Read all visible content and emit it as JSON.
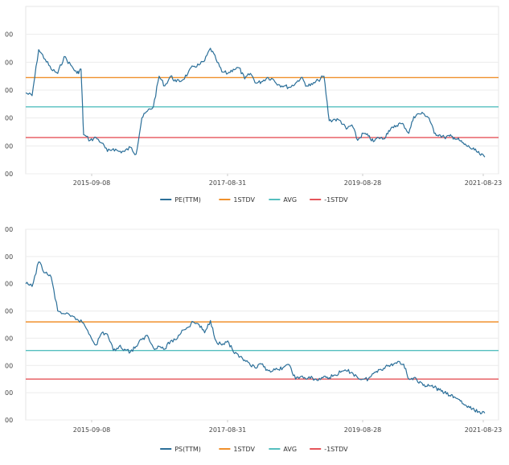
{
  "chart_data": [
    {
      "type": "line",
      "y_tick_labels": [
        "00",
        "00",
        "00",
        "00",
        "00",
        "00"
      ],
      "x_tick_labels": [
        "2015-09-08",
        "2017-08-31",
        "2019-08-28",
        "2021-08-23"
      ],
      "ylim": [
        0,
        6
      ],
      "grid": true,
      "legend_position": "bottom-center",
      "series": [
        {
          "name": "PE(TTM)",
          "color": "#2b6f99",
          "x": [
            "2014-11-01",
            "2014-12-01",
            "2015-01-01",
            "2015-02-01",
            "2015-03-01",
            "2015-04-01",
            "2015-05-01",
            "2015-06-01",
            "2015-07-01",
            "2015-07-20",
            "2015-08-01",
            "2015-09-01",
            "2015-10-01",
            "2015-11-01",
            "2015-12-01",
            "2016-01-01",
            "2016-02-01",
            "2016-03-01",
            "2016-04-01",
            "2016-05-01",
            "2016-06-01",
            "2016-07-01",
            "2016-08-01",
            "2016-09-01",
            "2016-10-01",
            "2016-11-01",
            "2016-12-01",
            "2017-01-01",
            "2017-02-01",
            "2017-03-01",
            "2017-04-01",
            "2017-05-01",
            "2017-06-01",
            "2017-07-01",
            "2017-08-01",
            "2017-09-01",
            "2017-10-01",
            "2017-11-01",
            "2017-12-01",
            "2018-01-01",
            "2018-02-01",
            "2018-03-01",
            "2018-04-01",
            "2018-05-01",
            "2018-06-01",
            "2018-07-01",
            "2018-08-01",
            "2018-09-01",
            "2018-10-01",
            "2018-11-01",
            "2018-12-01",
            "2019-01-01",
            "2019-02-01",
            "2019-03-01",
            "2019-04-01",
            "2019-05-01",
            "2019-06-01",
            "2019-07-01",
            "2019-08-01",
            "2019-09-01",
            "2019-10-01",
            "2019-11-01",
            "2019-12-01",
            "2020-01-01",
            "2020-02-01",
            "2020-03-01",
            "2020-04-01",
            "2020-05-01",
            "2020-06-01",
            "2020-07-01",
            "2020-08-01",
            "2020-09-01",
            "2020-10-01",
            "2020-11-01",
            "2020-12-01",
            "2021-01-01",
            "2021-02-01",
            "2021-03-01",
            "2021-04-01",
            "2021-05-01",
            "2021-06-01",
            "2021-07-01",
            "2021-08-01",
            "2021-09-01"
          ],
          "values": [
            2.9,
            2.8,
            4.45,
            4.1,
            3.75,
            3.6,
            4.2,
            3.9,
            3.6,
            3.75,
            1.4,
            1.2,
            1.3,
            1.1,
            0.8,
            0.9,
            0.8,
            0.8,
            0.95,
            0.7,
            2.0,
            2.25,
            2.4,
            3.5,
            3.15,
            3.5,
            3.3,
            3.35,
            3.6,
            3.85,
            3.9,
            4.05,
            4.5,
            4.1,
            3.65,
            3.6,
            3.75,
            3.8,
            3.4,
            3.6,
            3.25,
            3.3,
            3.45,
            3.4,
            3.2,
            3.15,
            3.1,
            3.25,
            3.45,
            3.15,
            3.2,
            3.35,
            3.5,
            1.9,
            1.95,
            1.9,
            1.6,
            1.75,
            1.2,
            1.45,
            1.35,
            1.15,
            1.3,
            1.25,
            1.55,
            1.65,
            1.8,
            1.75,
            1.45,
            2.05,
            2.15,
            2.15,
            2.0,
            1.45,
            1.4,
            1.3,
            1.35,
            1.3,
            1.2,
            1.05,
            0.95,
            0.85,
            0.7,
            0.6
          ]
        },
        {
          "name": "1STDV",
          "color": "#f0902c",
          "values": [
            3.45
          ]
        },
        {
          "name": "AVG",
          "color": "#55bfbf",
          "values": [
            2.4
          ]
        },
        {
          "name": "-1STDV",
          "color": "#e5555a",
          "values": [
            1.3
          ]
        }
      ]
    },
    {
      "type": "line",
      "y_tick_labels": [
        "00",
        "00",
        "00",
        "00",
        "00",
        "00",
        "00",
        "00"
      ],
      "x_tick_labels": [
        "2015-09-08",
        "2017-08-31",
        "2019-08-28",
        "2021-08-23"
      ],
      "ylim": [
        0,
        7
      ],
      "grid": true,
      "legend_position": "bottom-center",
      "series": [
        {
          "name": "PS(TTM)",
          "color": "#2b6f99",
          "x": [
            "2014-11-01",
            "2014-12-01",
            "2015-01-01",
            "2015-02-01",
            "2015-03-01",
            "2015-04-01",
            "2015-05-01",
            "2015-06-01",
            "2015-07-01",
            "2015-08-01",
            "2015-09-01",
            "2015-10-01",
            "2015-11-01",
            "2015-12-01",
            "2016-01-01",
            "2016-02-01",
            "2016-03-01",
            "2016-04-01",
            "2016-05-01",
            "2016-06-01",
            "2016-07-01",
            "2016-08-01",
            "2016-09-01",
            "2016-10-01",
            "2016-11-01",
            "2016-12-01",
            "2017-01-01",
            "2017-02-01",
            "2017-03-01",
            "2017-04-01",
            "2017-05-01",
            "2017-06-01",
            "2017-07-01",
            "2017-08-01",
            "2017-09-01",
            "2017-10-01",
            "2017-11-01",
            "2017-12-01",
            "2018-01-01",
            "2018-02-01",
            "2018-03-01",
            "2018-04-01",
            "2018-05-01",
            "2018-06-01",
            "2018-07-01",
            "2018-08-01",
            "2018-09-01",
            "2018-10-01",
            "2018-11-01",
            "2018-12-01",
            "2019-01-01",
            "2019-02-01",
            "2019-03-01",
            "2019-04-01",
            "2019-05-01",
            "2019-06-01",
            "2019-07-01",
            "2019-08-01",
            "2019-09-01",
            "2019-10-01",
            "2019-11-01",
            "2019-12-01",
            "2020-01-01",
            "2020-02-01",
            "2020-03-01",
            "2020-04-01",
            "2020-05-01",
            "2020-06-01",
            "2020-07-01",
            "2020-08-01",
            "2020-09-01",
            "2020-10-01",
            "2020-11-01",
            "2020-12-01",
            "2021-01-01",
            "2021-02-01",
            "2021-03-01",
            "2021-04-01",
            "2021-05-01",
            "2021-06-01",
            "2021-07-01",
            "2021-08-01",
            "2021-09-01"
          ],
          "values": [
            5.0,
            4.9,
            5.8,
            5.4,
            5.25,
            4.0,
            3.9,
            3.8,
            3.7,
            3.55,
            3.1,
            2.75,
            3.2,
            3.15,
            2.55,
            2.7,
            2.6,
            2.5,
            2.7,
            2.95,
            3.1,
            2.65,
            2.7,
            2.6,
            2.9,
            2.95,
            3.3,
            3.4,
            3.6,
            3.5,
            3.2,
            3.65,
            2.9,
            2.75,
            2.9,
            2.5,
            2.3,
            2.2,
            2.0,
            1.9,
            2.05,
            1.85,
            1.8,
            1.85,
            1.95,
            2.0,
            1.5,
            1.6,
            1.5,
            1.55,
            1.45,
            1.6,
            1.55,
            1.65,
            1.75,
            1.8,
            1.75,
            1.55,
            1.5,
            1.5,
            1.7,
            1.85,
            1.9,
            2.0,
            2.05,
            2.15,
            2.05,
            1.5,
            1.55,
            1.35,
            1.3,
            1.25,
            1.2,
            1.1,
            1.0,
            0.9,
            0.85,
            0.75,
            0.55,
            0.45,
            0.35,
            0.3,
            0.25
          ]
        },
        {
          "name": "1STDV",
          "color": "#f0902c",
          "values": [
            3.6
          ]
        },
        {
          "name": "AVG",
          "color": "#55bfbf",
          "values": [
            2.55
          ]
        },
        {
          "name": "-1STDV",
          "color": "#e5555a",
          "values": [
            1.5
          ]
        }
      ]
    }
  ]
}
